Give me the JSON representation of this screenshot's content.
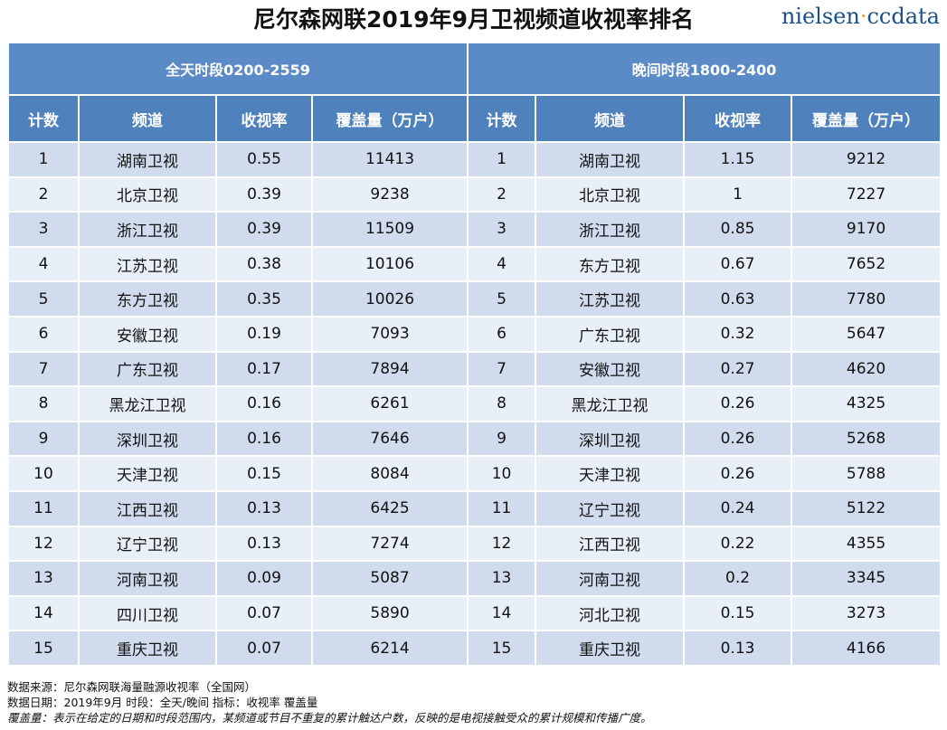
{
  "title": "尼尔森网联2019年9月卫视频道收视率排名",
  "logo": {
    "part1": "nielsen",
    "dot": "·",
    "part2": "ccdata"
  },
  "sections": {
    "allday": "全天时段0200-2559",
    "evening": "晚间时段1800-2400"
  },
  "columns": [
    "计数",
    "频道",
    "收视率",
    "覆盖量（万户）"
  ],
  "rows": [
    {
      "all": [
        "1",
        "湖南卫视",
        "0.55",
        "11413"
      ],
      "eve": [
        "1",
        "湖南卫视",
        "1.15",
        "9212"
      ]
    },
    {
      "all": [
        "2",
        "北京卫视",
        "0.39",
        "9238"
      ],
      "eve": [
        "2",
        "北京卫视",
        "1",
        "7227"
      ]
    },
    {
      "all": [
        "3",
        "浙江卫视",
        "0.39",
        "11509"
      ],
      "eve": [
        "3",
        "浙江卫视",
        "0.85",
        "9170"
      ]
    },
    {
      "all": [
        "4",
        "江苏卫视",
        "0.38",
        "10106"
      ],
      "eve": [
        "4",
        "东方卫视",
        "0.67",
        "7652"
      ]
    },
    {
      "all": [
        "5",
        "东方卫视",
        "0.35",
        "10026"
      ],
      "eve": [
        "5",
        "江苏卫视",
        "0.63",
        "7780"
      ]
    },
    {
      "all": [
        "6",
        "安徽卫视",
        "0.19",
        "7093"
      ],
      "eve": [
        "6",
        "广东卫视",
        "0.32",
        "5647"
      ]
    },
    {
      "all": [
        "7",
        "广东卫视",
        "0.17",
        "7894"
      ],
      "eve": [
        "7",
        "安徽卫视",
        "0.27",
        "4620"
      ]
    },
    {
      "all": [
        "8",
        "黑龙江卫视",
        "0.16",
        "6261"
      ],
      "eve": [
        "8",
        "黑龙江卫视",
        "0.26",
        "4325"
      ]
    },
    {
      "all": [
        "9",
        "深圳卫视",
        "0.16",
        "7646"
      ],
      "eve": [
        "9",
        "深圳卫视",
        "0.26",
        "5268"
      ]
    },
    {
      "all": [
        "10",
        "天津卫视",
        "0.15",
        "8084"
      ],
      "eve": [
        "10",
        "天津卫视",
        "0.26",
        "5788"
      ]
    },
    {
      "all": [
        "11",
        "江西卫视",
        "0.13",
        "6425"
      ],
      "eve": [
        "11",
        "辽宁卫视",
        "0.24",
        "5122"
      ]
    },
    {
      "all": [
        "12",
        "辽宁卫视",
        "0.13",
        "7274"
      ],
      "eve": [
        "12",
        "江西卫视",
        "0.22",
        "4355"
      ]
    },
    {
      "all": [
        "13",
        "河南卫视",
        "0.09",
        "5087"
      ],
      "eve": [
        "13",
        "河南卫视",
        "0.2",
        "3345"
      ]
    },
    {
      "all": [
        "14",
        "四川卫视",
        "0.07",
        "5890"
      ],
      "eve": [
        "14",
        "河北卫视",
        "0.15",
        "3273"
      ]
    },
    {
      "all": [
        "15",
        "重庆卫视",
        "0.07",
        "6214"
      ],
      "eve": [
        "15",
        "重庆卫视",
        "0.13",
        "4166"
      ]
    }
  ],
  "notes": {
    "source": "数据来源：尼尔森网联海量融源收视率（全国网）",
    "date": "数据日期：2019年9月  时段：全天/晚间   指标：收视率 覆盖量",
    "coverage": "覆盖量：表示在给定的日期和时段范围内，某频道或节目不重复的累计触达户数，反映的是电视接触受众的累计规模和传播广度。"
  },
  "colors": {
    "header_dark": "#4f81bd",
    "header_section": "#5b8bc6",
    "row_odd": "#d0dcee",
    "row_even": "#e9eff7"
  }
}
